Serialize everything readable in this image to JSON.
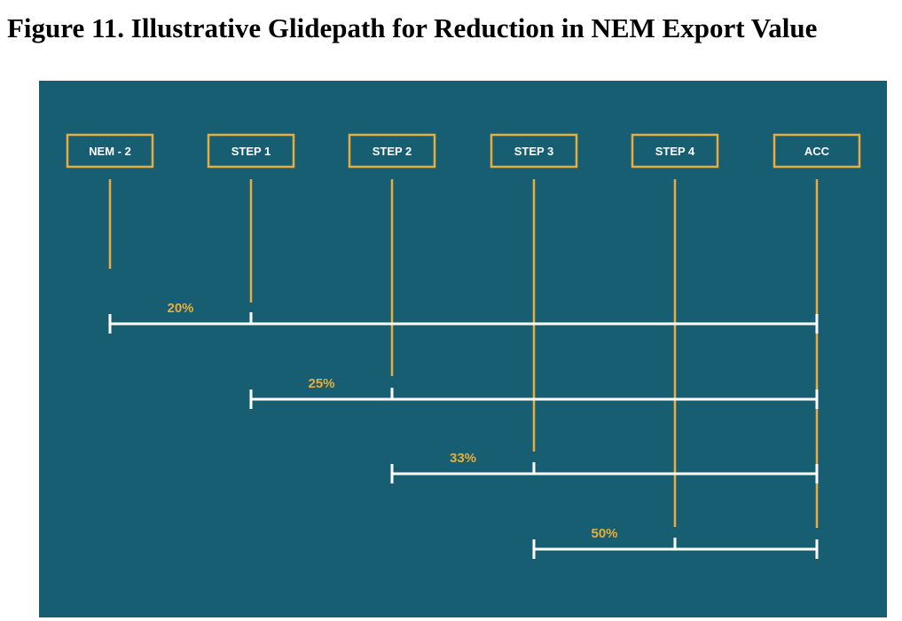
{
  "figure": {
    "title": "Figure 11. Illustrative Glidepath for Reduction in NEM Export Value"
  },
  "colors": {
    "panel_bg": "#175E72",
    "gold": "#E8AD3E",
    "white": "#FFFFFF"
  },
  "stages": [
    {
      "label": "NEM - 2"
    },
    {
      "label": "STEP 1"
    },
    {
      "label": "STEP 2"
    },
    {
      "label": "STEP 3"
    },
    {
      "label": "STEP 4"
    },
    {
      "label": "ACC"
    }
  ],
  "reductions": [
    {
      "label": "20%",
      "from_stage": 0,
      "tick_stage": 1,
      "to_stage": 5
    },
    {
      "label": "25%",
      "from_stage": 1,
      "tick_stage": 2,
      "to_stage": 5
    },
    {
      "label": "33%",
      "from_stage": 2,
      "tick_stage": 3,
      "to_stage": 5
    },
    {
      "label": "50%",
      "from_stage": 3,
      "tick_stage": 4,
      "to_stage": 5
    }
  ]
}
